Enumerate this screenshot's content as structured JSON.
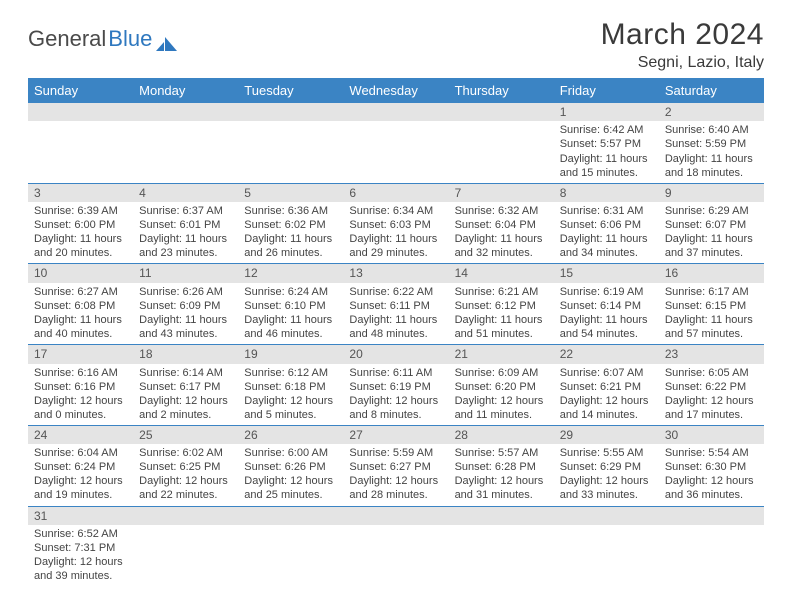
{
  "brand": {
    "part1": "General",
    "part2": "Blue"
  },
  "title": "March 2024",
  "location": "Segni, Lazio, Italy",
  "colors": {
    "header_bg": "#3b84c4",
    "header_text": "#ffffff",
    "daynum_bg": "#e4e4e4",
    "row_border": "#3b84c4",
    "text": "#333333",
    "logo_accent": "#2f78bf"
  },
  "weekdays": [
    "Sunday",
    "Monday",
    "Tuesday",
    "Wednesday",
    "Thursday",
    "Friday",
    "Saturday"
  ],
  "weeks": [
    [
      null,
      null,
      null,
      null,
      null,
      {
        "n": "1",
        "sr": "6:42 AM",
        "ss": "5:57 PM",
        "dl": "11 hours and 15 minutes."
      },
      {
        "n": "2",
        "sr": "6:40 AM",
        "ss": "5:59 PM",
        "dl": "11 hours and 18 minutes."
      }
    ],
    [
      {
        "n": "3",
        "sr": "6:39 AM",
        "ss": "6:00 PM",
        "dl": "11 hours and 20 minutes."
      },
      {
        "n": "4",
        "sr": "6:37 AM",
        "ss": "6:01 PM",
        "dl": "11 hours and 23 minutes."
      },
      {
        "n": "5",
        "sr": "6:36 AM",
        "ss": "6:02 PM",
        "dl": "11 hours and 26 minutes."
      },
      {
        "n": "6",
        "sr": "6:34 AM",
        "ss": "6:03 PM",
        "dl": "11 hours and 29 minutes."
      },
      {
        "n": "7",
        "sr": "6:32 AM",
        "ss": "6:04 PM",
        "dl": "11 hours and 32 minutes."
      },
      {
        "n": "8",
        "sr": "6:31 AM",
        "ss": "6:06 PM",
        "dl": "11 hours and 34 minutes."
      },
      {
        "n": "9",
        "sr": "6:29 AM",
        "ss": "6:07 PM",
        "dl": "11 hours and 37 minutes."
      }
    ],
    [
      {
        "n": "10",
        "sr": "6:27 AM",
        "ss": "6:08 PM",
        "dl": "11 hours and 40 minutes."
      },
      {
        "n": "11",
        "sr": "6:26 AM",
        "ss": "6:09 PM",
        "dl": "11 hours and 43 minutes."
      },
      {
        "n": "12",
        "sr": "6:24 AM",
        "ss": "6:10 PM",
        "dl": "11 hours and 46 minutes."
      },
      {
        "n": "13",
        "sr": "6:22 AM",
        "ss": "6:11 PM",
        "dl": "11 hours and 48 minutes."
      },
      {
        "n": "14",
        "sr": "6:21 AM",
        "ss": "6:12 PM",
        "dl": "11 hours and 51 minutes."
      },
      {
        "n": "15",
        "sr": "6:19 AM",
        "ss": "6:14 PM",
        "dl": "11 hours and 54 minutes."
      },
      {
        "n": "16",
        "sr": "6:17 AM",
        "ss": "6:15 PM",
        "dl": "11 hours and 57 minutes."
      }
    ],
    [
      {
        "n": "17",
        "sr": "6:16 AM",
        "ss": "6:16 PM",
        "dl": "12 hours and 0 minutes."
      },
      {
        "n": "18",
        "sr": "6:14 AM",
        "ss": "6:17 PM",
        "dl": "12 hours and 2 minutes."
      },
      {
        "n": "19",
        "sr": "6:12 AM",
        "ss": "6:18 PM",
        "dl": "12 hours and 5 minutes."
      },
      {
        "n": "20",
        "sr": "6:11 AM",
        "ss": "6:19 PM",
        "dl": "12 hours and 8 minutes."
      },
      {
        "n": "21",
        "sr": "6:09 AM",
        "ss": "6:20 PM",
        "dl": "12 hours and 11 minutes."
      },
      {
        "n": "22",
        "sr": "6:07 AM",
        "ss": "6:21 PM",
        "dl": "12 hours and 14 minutes."
      },
      {
        "n": "23",
        "sr": "6:05 AM",
        "ss": "6:22 PM",
        "dl": "12 hours and 17 minutes."
      }
    ],
    [
      {
        "n": "24",
        "sr": "6:04 AM",
        "ss": "6:24 PM",
        "dl": "12 hours and 19 minutes."
      },
      {
        "n": "25",
        "sr": "6:02 AM",
        "ss": "6:25 PM",
        "dl": "12 hours and 22 minutes."
      },
      {
        "n": "26",
        "sr": "6:00 AM",
        "ss": "6:26 PM",
        "dl": "12 hours and 25 minutes."
      },
      {
        "n": "27",
        "sr": "5:59 AM",
        "ss": "6:27 PM",
        "dl": "12 hours and 28 minutes."
      },
      {
        "n": "28",
        "sr": "5:57 AM",
        "ss": "6:28 PM",
        "dl": "12 hours and 31 minutes."
      },
      {
        "n": "29",
        "sr": "5:55 AM",
        "ss": "6:29 PM",
        "dl": "12 hours and 33 minutes."
      },
      {
        "n": "30",
        "sr": "5:54 AM",
        "ss": "6:30 PM",
        "dl": "12 hours and 36 minutes."
      }
    ],
    [
      {
        "n": "31",
        "sr": "6:52 AM",
        "ss": "7:31 PM",
        "dl": "12 hours and 39 minutes."
      },
      null,
      null,
      null,
      null,
      null,
      null
    ]
  ],
  "labels": {
    "sunrise": "Sunrise:",
    "sunset": "Sunset:",
    "daylight": "Daylight:"
  }
}
